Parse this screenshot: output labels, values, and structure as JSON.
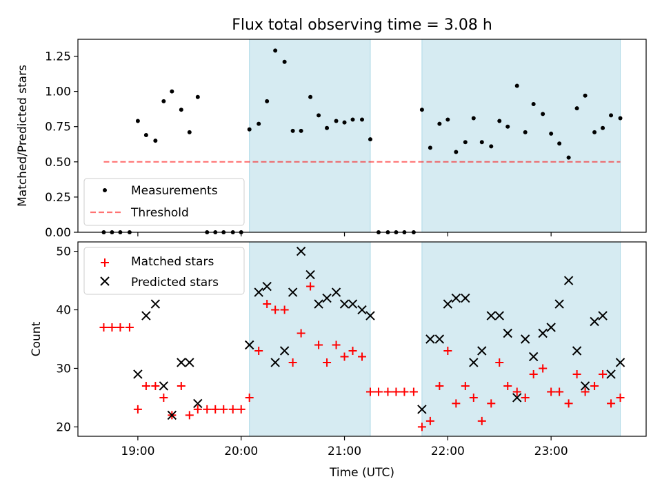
{
  "title": "Flux total observing time = 3.08 h",
  "colors": {
    "shade": "#add8e6",
    "threshold": "#ff0000",
    "matched": "#ff0000",
    "predicted": "#000000",
    "measurement": "#000000"
  },
  "chart_data": [
    {
      "type": "scatter",
      "panel": "top",
      "title": "Flux total observing time = 3.08 h",
      "ylabel": "Matched/Predicted stars",
      "xlabel": "",
      "xlim": [
        18.42,
        23.92
      ],
      "ylim": [
        0.0,
        1.37
      ],
      "yticks": [
        "0.00",
        "0.25",
        "0.50",
        "0.75",
        "1.00",
        "1.25"
      ],
      "ytick_values": [
        0,
        0.25,
        0.5,
        0.75,
        1.0,
        1.25
      ],
      "shaded_intervals": [
        [
          20.08,
          21.25
        ],
        [
          21.75,
          23.67
        ]
      ],
      "legend": {
        "position": "lower-left",
        "entries": [
          "Measurements",
          "Threshold"
        ]
      },
      "threshold": {
        "name": "Threshold",
        "y": 0.5,
        "x": [
          18.67,
          23.67
        ]
      },
      "series": [
        {
          "name": "Measurements",
          "x": [
            18.67,
            18.75,
            18.83,
            18.92,
            19.0,
            19.08,
            19.17,
            19.25,
            19.33,
            19.42,
            19.5,
            19.58,
            19.67,
            19.75,
            19.83,
            19.92,
            20.0,
            20.08,
            20.17,
            20.25,
            20.33,
            20.42,
            20.5,
            20.58,
            20.67,
            20.75,
            20.83,
            20.92,
            21.0,
            21.08,
            21.17,
            21.25,
            21.33,
            21.42,
            21.5,
            21.58,
            21.67,
            21.75,
            21.83,
            21.92,
            22.0,
            22.08,
            22.17,
            22.25,
            22.33,
            22.42,
            22.5,
            22.58,
            22.67,
            22.75,
            22.83,
            22.92,
            23.0,
            23.08,
            23.17,
            23.25,
            23.33,
            23.42,
            23.5,
            23.58,
            23.67
          ],
          "y": [
            0,
            0,
            0,
            0,
            0.79,
            0.69,
            0.65,
            0.93,
            1.0,
            0.87,
            0.71,
            0.96,
            0,
            0,
            0,
            0,
            0,
            0.73,
            0.77,
            0.93,
            1.29,
            1.21,
            0.72,
            0.72,
            0.96,
            0.83,
            0.74,
            0.79,
            0.78,
            0.8,
            0.8,
            0.66,
            0,
            0,
            0,
            0,
            0,
            0.87,
            0.6,
            0.77,
            0.8,
            0.57,
            0.64,
            0.81,
            0.64,
            0.61,
            0.79,
            0.75,
            1.04,
            0.71,
            0.91,
            0.84,
            0.7,
            0.63,
            0.53,
            0.88,
            0.97,
            0.71,
            0.74,
            0.83,
            0.81
          ]
        }
      ]
    },
    {
      "type": "scatter",
      "panel": "bottom",
      "title": "",
      "ylabel": "Count",
      "xlabel": "Time (UTC)",
      "xlim": [
        18.42,
        23.92
      ],
      "ylim": [
        18.4,
        51.6
      ],
      "yticks": [
        "20",
        "30",
        "40",
        "50"
      ],
      "ytick_values": [
        20,
        30,
        40,
        50
      ],
      "xticks": [
        "19:00",
        "20:00",
        "21:00",
        "22:00",
        "23:00"
      ],
      "xtick_values": [
        19,
        20,
        21,
        22,
        23
      ],
      "shaded_intervals": [
        [
          20.08,
          21.25
        ],
        [
          21.75,
          23.67
        ]
      ],
      "legend": {
        "position": "top-left",
        "entries": [
          "Matched stars",
          "Predicted stars"
        ]
      },
      "x": [
        18.67,
        18.75,
        18.83,
        18.92,
        19.0,
        19.08,
        19.17,
        19.25,
        19.33,
        19.42,
        19.5,
        19.58,
        19.67,
        19.75,
        19.83,
        19.92,
        20.0,
        20.08,
        20.17,
        20.25,
        20.33,
        20.42,
        20.5,
        20.58,
        20.67,
        20.75,
        20.83,
        20.92,
        21.0,
        21.08,
        21.17,
        21.25,
        21.33,
        21.42,
        21.5,
        21.58,
        21.67,
        21.75,
        21.83,
        21.92,
        22.0,
        22.08,
        22.17,
        22.25,
        22.33,
        22.42,
        22.5,
        22.58,
        22.67,
        22.75,
        22.83,
        22.92,
        23.0,
        23.08,
        23.17,
        23.25,
        23.33,
        23.42,
        23.5,
        23.58,
        23.67
      ],
      "series": [
        {
          "name": "Matched stars",
          "marker": "plus",
          "values": [
            37,
            37,
            37,
            37,
            23,
            27,
            27,
            25,
            22,
            27,
            22,
            23,
            23,
            23,
            23,
            23,
            23,
            25,
            33,
            41,
            40,
            40,
            31,
            36,
            44,
            34,
            31,
            34,
            32,
            33,
            32,
            26,
            26,
            26,
            26,
            26,
            26,
            20,
            21,
            27,
            33,
            24,
            27,
            25,
            21,
            24,
            31,
            27,
            26,
            25,
            29,
            30,
            26,
            26,
            24,
            29,
            26,
            27,
            29,
            24,
            25
          ]
        },
        {
          "name": "Predicted stars",
          "marker": "x",
          "values": [
            null,
            null,
            null,
            null,
            29,
            39,
            41,
            27,
            22,
            31,
            31,
            24,
            null,
            null,
            null,
            null,
            null,
            34,
            43,
            44,
            31,
            33,
            43,
            50,
            46,
            41,
            42,
            43,
            41,
            41,
            40,
            39,
            null,
            null,
            null,
            null,
            null,
            23,
            35,
            35,
            41,
            42,
            42,
            31,
            33,
            39,
            39,
            36,
            25,
            35,
            32,
            36,
            37,
            41,
            45,
            33,
            27,
            38,
            39,
            29,
            31
          ]
        }
      ]
    }
  ]
}
